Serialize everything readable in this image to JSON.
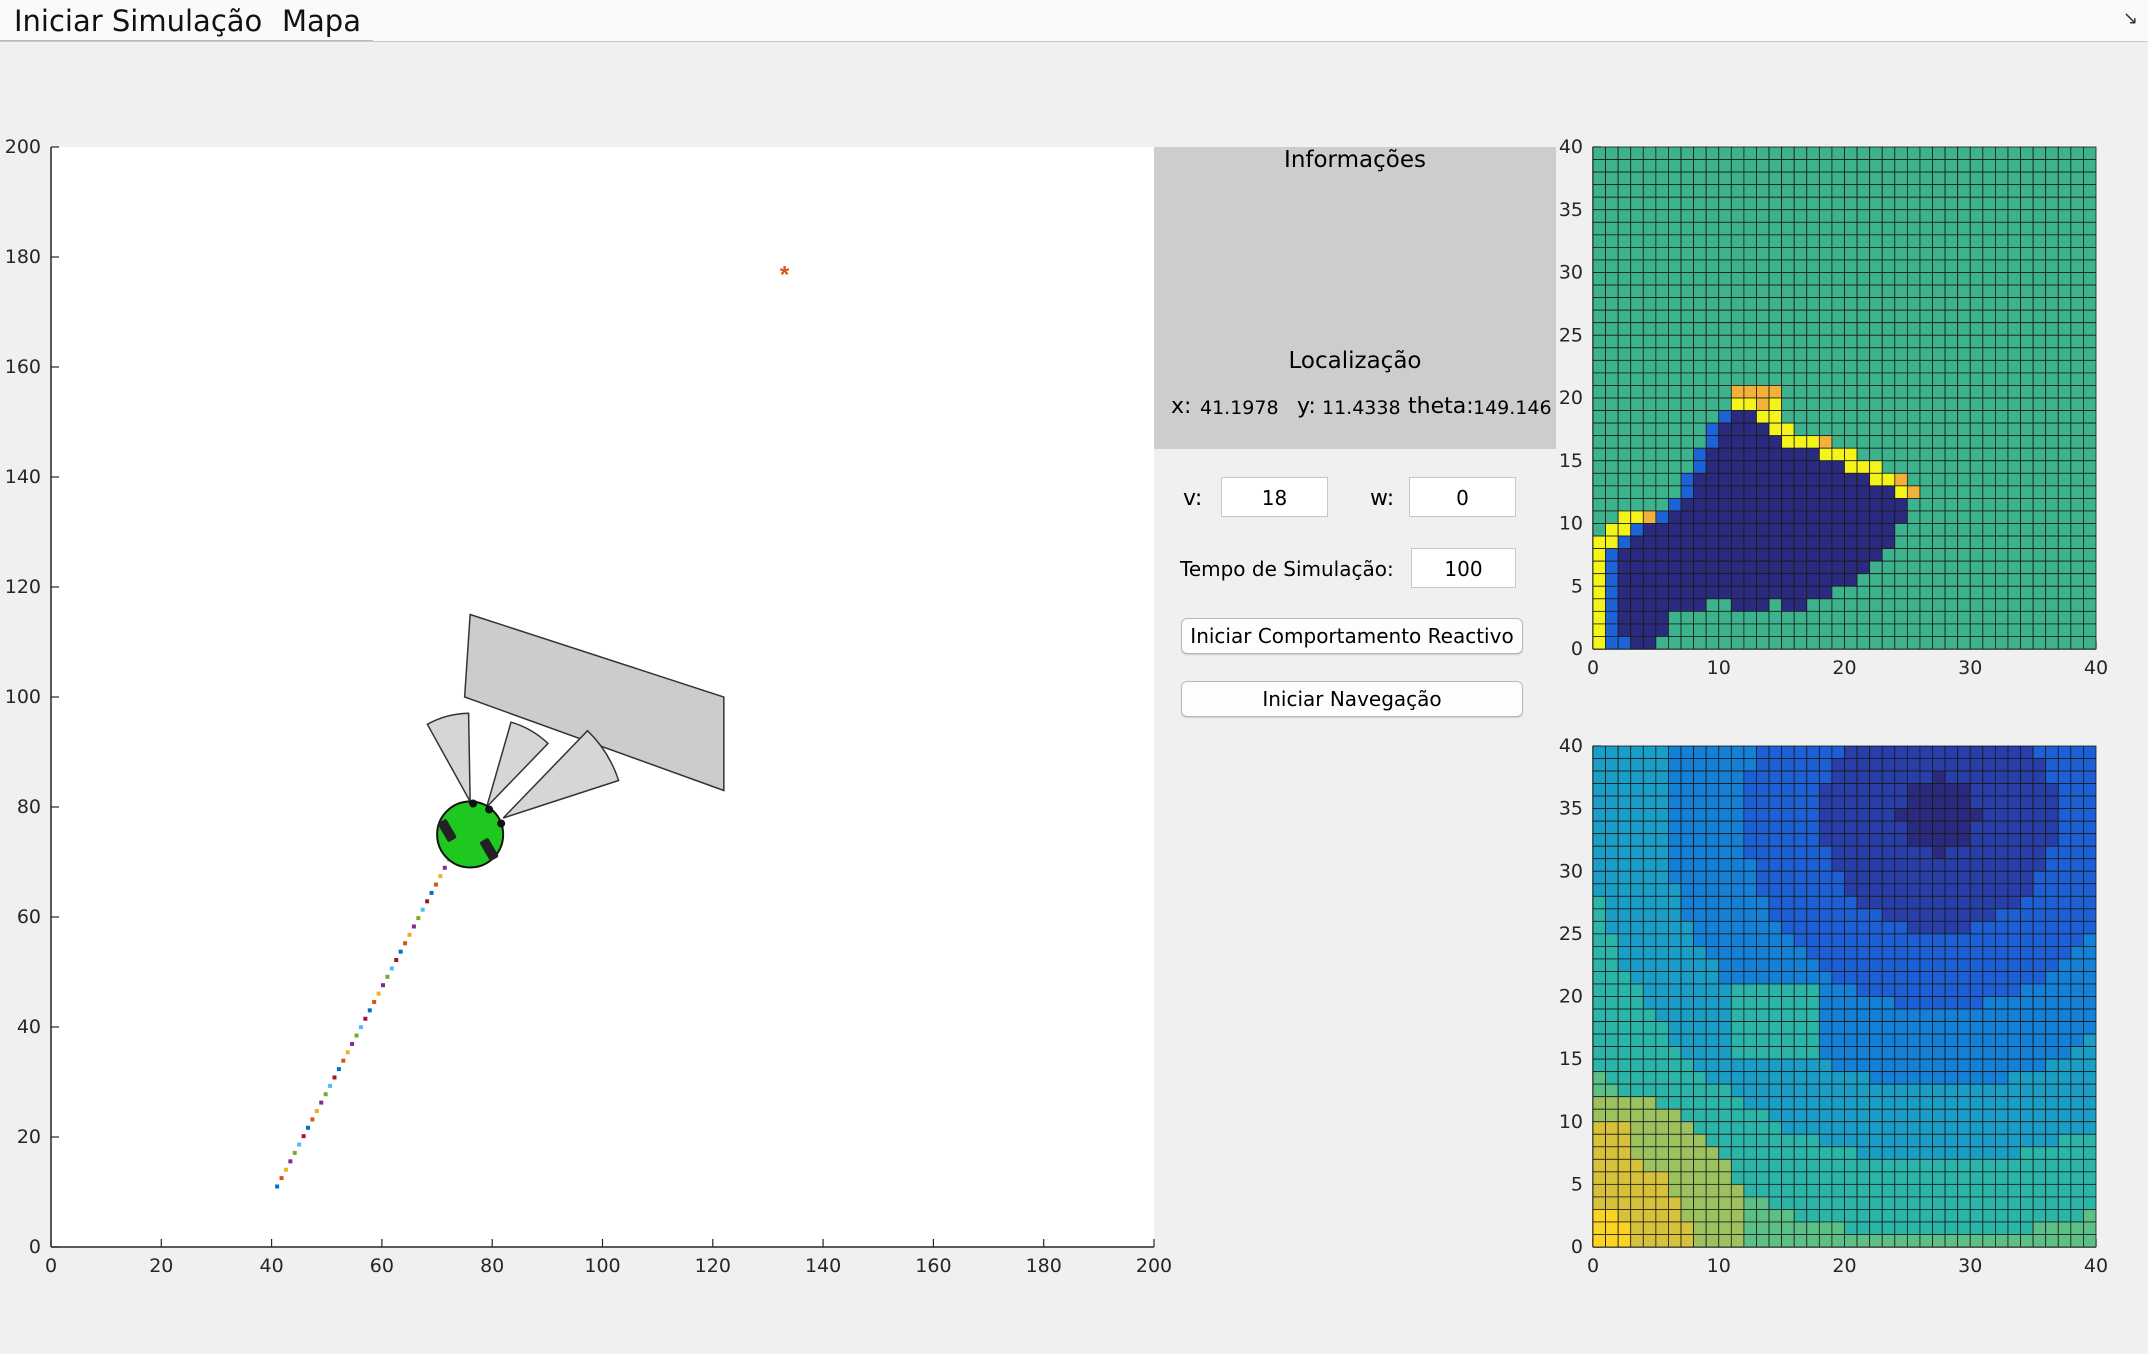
{
  "menubar": {
    "items": [
      "Iniciar Simulação",
      "Mapa"
    ]
  },
  "main_plot": {
    "xlim": [
      0,
      200
    ],
    "ylim": [
      0,
      200
    ],
    "xticks": [
      0,
      20,
      40,
      60,
      80,
      100,
      120,
      140,
      160,
      180,
      200
    ],
    "yticks": [
      0,
      20,
      40,
      60,
      80,
      100,
      120,
      140,
      160,
      180,
      200
    ],
    "goal": {
      "x": 133,
      "y": 177,
      "color": "#d95319"
    },
    "robot": {
      "x": 76,
      "y": 75,
      "color": "#1ec81e"
    },
    "obstacle": [
      [
        76,
        115
      ],
      [
        122,
        100
      ],
      [
        122,
        83
      ],
      [
        75,
        100
      ]
    ],
    "trajectory": {
      "from": [
        41,
        11
      ],
      "to": [
        73,
        72
      ]
    },
    "sensor_cones": [
      {
        "from": [
          76,
          81
        ],
        "dir": 105,
        "range": 16,
        "halfAngle": 14
      },
      {
        "from": [
          79,
          80
        ],
        "dir": 60,
        "range": 16,
        "halfAngle": 14
      },
      {
        "from": [
          82,
          78
        ],
        "dir": 32,
        "range": 22,
        "halfAngle": 14
      }
    ],
    "trajectory_colors": [
      "#0072bd",
      "#d95319",
      "#edb120",
      "#7e2f8e",
      "#77ac30",
      "#4dbeee",
      "#a2142f"
    ]
  },
  "info_panel": {
    "title": "Informações",
    "location_title": "Localização",
    "x_label": "x:",
    "x_value": "41.1978",
    "y_label": "y:",
    "y_value": "11.4338",
    "theta_label": "theta:",
    "theta_value": "149.146"
  },
  "controls": {
    "v_label": "v:",
    "v_value": "18",
    "w_label": "w:",
    "w_value": "0",
    "time_label": "Tempo de Simulação:",
    "time_value": "100",
    "reactive_button": "Iniciar Comportamento Reactivo",
    "nav_button": "Iniciar Navegação"
  },
  "map_plot": {
    "xlim": [
      0,
      40
    ],
    "ylim": [
      0,
      40
    ],
    "xticks": [
      0,
      10,
      20,
      30,
      40
    ],
    "yticks": [
      0,
      5,
      10,
      15,
      20,
      25,
      30,
      35,
      40
    ],
    "free_color": "#3cb38c",
    "occupied_color": "#2a2a7e",
    "edge_color": "#1d63d8",
    "boundary_color": "#f4f41a",
    "orange_color": "#f2b23a",
    "rows": [
      "EEEEEEEEEEEEEEEEEEEEEEEEEEEEEEEEEEEEEEEE",
      "EEEEEEEEEEEEEEEEEEEEEEEEEEEEEEEEEEEEEEEE",
      "EEEEEEEEEEEEEEEEEEEEEEEEEEEEEEEEEEEEEEEE",
      "EEEEEEEEEEEEEEEEEEEEEEEEEEEEEEEEEEEEEEEE",
      "EEEEEEEEEEEEEEEEEEEEEEEEEEEEEEEEEEEEEEEE",
      "EEEEEEEEEEEEEEEEEEEEEEEEEEEEEEEEEEEEEEEE",
      "EEEEEEEEEEEEEEEEEEEEEEEEEEEEEEEEEEEEEEEE",
      "EEEEEEEEEEEEEEEEEEEEEEEEEEEEEEEEEEEEEEEE",
      "EEEEEEEEEEEEEEEEEEEEEEEEEEEEEEEEEEEEEEEE",
      "EEEEEEEEEEEEEEEEEEEEEEEEEEEEEEEEEEEEEEEE",
      "EEEEEEEEEEEEEEEEEEEEEEEEEEEEEEEEEEEEEEEE",
      "EEEEEEEEEEEEEEEEEEEEEEEEEEEEEEEEEEEEEEEE",
      "EEEEEEEEEEEEEEEEEEEEEEEEEEEEEEEEEEEEEEEE",
      "EEEEEEEEEEEOOOOEEEEEEEEEEEEEEEEEEEEEEEEE",
      "EEEEEEEEEEEYYOYEEEEEEEEEEEEEEEEEEEEEEEEE",
      "EEEEEEEEEEBXXYYEEEEEEEEEEEEEEEEEEEEEEEEE",
      "EEEEEEEEEBXXXXYYEEEEEEEEEEEEEEEEEEEEEEEE",
      "EEEEEEEEEBXXXXXYYYOEEEEEEEEEEEEEEEEEEEEE",
      "EEEEEEEEBXXXXXXXXXYYYEEEEEEEEEEEEEEEEEEE",
      "EEEEEEEEBXXXXXXXXXXXYYYEEEEEEEEEEEEEEEEE",
      "EEEEEEEBXXXXXXXXXXXXXXYYOEEEEEEEEEEEEEEE",
      "EEEEEEEBXXXXXXXXXXXXXXXXYOEEEEEEEEEEEEEE",
      "EEEEEEBXXXXXXXXXXXXXXXXXXEEEEEEEEEEEEEEE",
      "EEYYOBXXXXXXXXXXXXXXXXXXXEEEEEEEEEEEEEEE",
      "EYYBXXXXXXXXXXXXXXXXXXXXEEEEEEEEEEEEEEEE",
      "YYBXXXXXXXXXXXXXXXXXXXXXEEEEEEEEEEEEEEEE",
      "YBXXXXXXXXXXXXXXXXXXXXXEEEEEEEEEEEEEEEEE",
      "YBXXXXXXXXXXXXXXXXXXXXEEEEEEEEEEEEEEEEEE",
      "YBXXXXXXXXXXXXXXXXXXXEEEEEEEEEEEEEEEEEEE",
      "YBXXXXXXXXXXXXXXXXXEEEEEEEEEEEEEEEEEEEEE",
      "YBXXXXXXXEEXXXEXXEEEEEEEEEEEEEEEEEEEEEEE",
      "YBXXXXEEEEEEEEEEEEEEEEEEEEEEEEEEEEEEEEEE",
      "YBXXXXEEEEEEEEEEEEEEEEEEEEEEEEEEEEEEEEEE",
      "YBBXXEEEEEEEEEEEEEEEEEEEEEEEEEEEEEEEEEEE"
    ]
  },
  "potential_plot": {
    "xlim": [
      0,
      40
    ],
    "ylim": [
      0,
      40
    ],
    "xticks": [
      0,
      10,
      20,
      30,
      40
    ],
    "yticks": [
      0,
      5,
      10,
      15,
      20,
      25,
      30,
      35,
      40
    ],
    "colormap": [
      "#2a2a7e",
      "#283ea8",
      "#1d5fd4",
      "#1480d6",
      "#1b9ec6",
      "#2bb4a8",
      "#5cbf86",
      "#9bc25e",
      "#d7c13a",
      "#fbd423"
    ]
  }
}
